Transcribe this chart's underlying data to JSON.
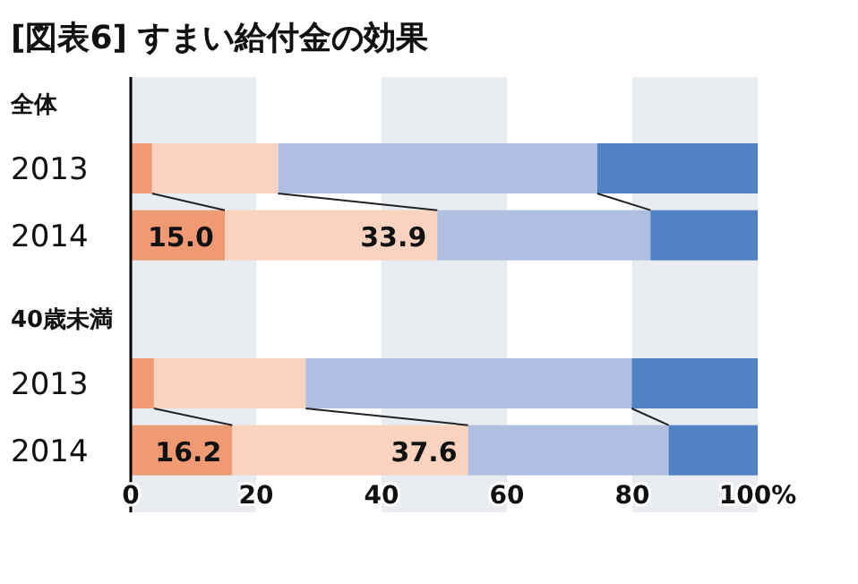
{
  "chart_data": {
    "type": "bar",
    "orientation": "horizontal",
    "stacked": true,
    "title": "[図表6] すまい給付金の効果",
    "categories": [
      "全体",
      "2013",
      "2014",
      "40歳未満",
      "2013",
      "2014"
    ],
    "series": [
      {
        "color": "#f09a74",
        "values": [
          null,
          3.4,
          15.0,
          null,
          3.7,
          16.2
        ],
        "value_labels": [
          null,
          null,
          "15.0",
          null,
          null,
          "16.2"
        ]
      },
      {
        "color": "#f9d3bf",
        "values": [
          null,
          20.1,
          33.9,
          null,
          24.2,
          37.6
        ],
        "value_labels": [
          null,
          null,
          "33.9",
          null,
          null,
          "37.6"
        ]
      },
      {
        "color": "#aebfe2",
        "values": [
          null,
          50.9,
          34.0,
          null,
          52.0,
          32.0
        ]
      },
      {
        "color": "#4f81c3",
        "values": [
          null,
          25.6,
          17.1,
          null,
          20.1,
          14.2
        ]
      }
    ],
    "xlim": [
      0,
      100
    ],
    "xticks": [
      0,
      20,
      40,
      60,
      80,
      {
        "value": 100,
        "label": "100%"
      }
    ],
    "bands": [
      {
        "axis": "x",
        "from": 0,
        "to": 20,
        "color": "#e9ecf0"
      },
      {
        "axis": "x",
        "from": 40,
        "to": 60,
        "color": "#e9ecf0"
      },
      {
        "axis": "x",
        "from": 80,
        "to": 100,
        "color": "#e9ecf0"
      }
    ]
  }
}
